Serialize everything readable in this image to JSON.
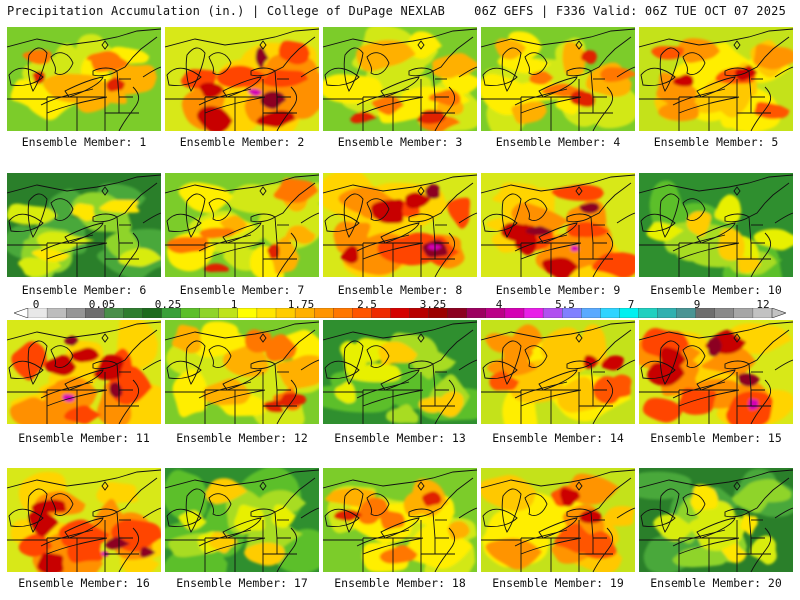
{
  "header": {
    "title": "Precipitation Accumulation (in.) | College of DuPage NEXLAB",
    "run_info": "06Z GEFS | F336 Valid: 06Z TUE OCT 07 2025"
  },
  "legend": {
    "labels": [
      "0",
      "0.05",
      "0.25",
      "1",
      "1.75",
      "2.5",
      "3.25",
      "4",
      "5.5",
      "7",
      "9",
      "12"
    ],
    "colors": [
      "#e8e8e8",
      "#bdbdbd",
      "#969696",
      "#6e6e6e",
      "#4a8f4a",
      "#2f7d2f",
      "#1e6b1e",
      "#3aa03a",
      "#5cbf2a",
      "#8fd42a",
      "#bfe31a",
      "#ffff00",
      "#ffe600",
      "#ffcc00",
      "#ffb000",
      "#ff9400",
      "#ff7700",
      "#ff5500",
      "#ee2a00",
      "#d40000",
      "#b80000",
      "#9c0000",
      "#8c0020",
      "#9c0060",
      "#bb0088",
      "#d400b4",
      "#e81ee8",
      "#b050f0",
      "#8080ff",
      "#5aaaff",
      "#30d4ff",
      "#00f0f0",
      "#20d0c0",
      "#30b0b0",
      "#4a9494",
      "#6e6e6e",
      "#8a8a8a",
      "#a6a6a6",
      "#c2c2c2"
    ]
  },
  "panels": [
    {
      "label": "Ensemble Member: 1",
      "scheme": "mixed"
    },
    {
      "label": "Ensemble Member: 2",
      "scheme": "wet"
    },
    {
      "label": "Ensemble Member: 3",
      "scheme": "mixed"
    },
    {
      "label": "Ensemble Member: 4",
      "scheme": "mixed"
    },
    {
      "label": "Ensemble Member: 5",
      "scheme": "yellow"
    },
    {
      "label": "Ensemble Member: 6",
      "scheme": "dry"
    },
    {
      "label": "Ensemble Member: 7",
      "scheme": "mixed"
    },
    {
      "label": "Ensemble Member: 8",
      "scheme": "wet"
    },
    {
      "label": "Ensemble Member: 9",
      "scheme": "wet"
    },
    {
      "label": "Ensemble Member: 10",
      "scheme": "green"
    },
    {
      "label": "Ensemble Member: 11",
      "scheme": "wet"
    },
    {
      "label": "Ensemble Member: 12",
      "scheme": "mixed"
    },
    {
      "label": "Ensemble Member: 13",
      "scheme": "green"
    },
    {
      "label": "Ensemble Member: 14",
      "scheme": "yellow"
    },
    {
      "label": "Ensemble Member: 15",
      "scheme": "wet"
    },
    {
      "label": "Ensemble Member: 16",
      "scheme": "wet"
    },
    {
      "label": "Ensemble Member: 17",
      "scheme": "green"
    },
    {
      "label": "Ensemble Member: 18",
      "scheme": "mixed"
    },
    {
      "label": "Ensemble Member: 19",
      "scheme": "yellow"
    },
    {
      "label": "Ensemble Member: 20",
      "scheme": "dry"
    }
  ]
}
